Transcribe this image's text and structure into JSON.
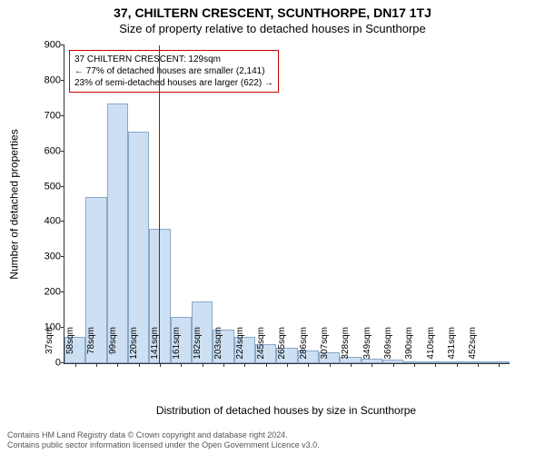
{
  "header": {
    "address": "37, CHILTERN CRESCENT, SCUNTHORPE, DN17 1TJ",
    "subtitle": "Size of property relative to detached houses in Scunthorpe"
  },
  "chart": {
    "type": "histogram",
    "ylabel": "Number of detached properties",
    "xlabel": "Distribution of detached houses by size in Scunthorpe",
    "ylim": [
      0,
      900
    ],
    "ytick_step": 100,
    "bar_fill": "#cddff2",
    "bar_border": "#8aa8c8",
    "ruler_color": "#cc0000",
    "background": "#ffffff",
    "axis_color": "#333333",
    "categories": [
      "37sqm",
      "58sqm",
      "78sqm",
      "99sqm",
      "120sqm",
      "141sqm",
      "161sqm",
      "182sqm",
      "203sqm",
      "224sqm",
      "245sqm",
      "265sqm",
      "286sqm",
      "307sqm",
      "328sqm",
      "349sqm",
      "369sqm",
      "390sqm",
      "410sqm",
      "431sqm",
      "452sqm"
    ],
    "values": [
      75,
      470,
      735,
      655,
      380,
      130,
      175,
      95,
      75,
      55,
      45,
      35,
      30,
      18,
      12,
      10,
      6,
      4,
      3,
      2,
      2
    ],
    "ruler_after_index": 4,
    "yticks": [
      0,
      100,
      200,
      300,
      400,
      500,
      600,
      700,
      800,
      900
    ]
  },
  "annotation": {
    "line1": "37 CHILTERN CRESCENT: 129sqm",
    "line2": "← 77% of detached houses are smaller (2,141)",
    "line3": "23% of semi-detached houses are larger (622) →"
  },
  "footer": {
    "line1": "Contains HM Land Registry data © Crown copyright and database right 2024.",
    "line2": "Contains public sector information licensed under the Open Government Licence v3.0."
  }
}
